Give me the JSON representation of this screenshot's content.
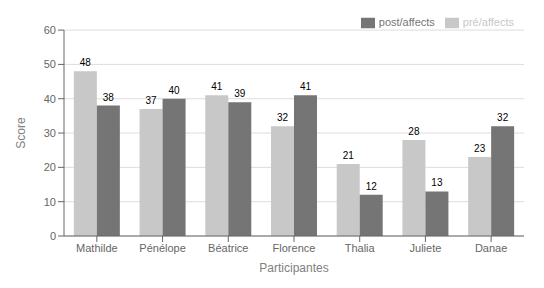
{
  "chart_data": {
    "type": "bar",
    "categories": [
      "Mathilde",
      "Pénélope",
      "Béatrice",
      "Florence",
      "Thalia",
      "Juliete",
      "Danae"
    ],
    "series": [
      {
        "name": "pré/affects",
        "color": "#c8c8c8",
        "values": [
          48,
          37,
          41,
          32,
          21,
          28,
          23
        ]
      },
      {
        "name": "post/affects",
        "color": "#757575",
        "values": [
          38,
          40,
          39,
          41,
          12,
          13,
          32
        ]
      }
    ],
    "xlabel": "Participantes",
    "ylabel": "Score",
    "ylim": [
      0,
      60
    ],
    "yticks": [
      0,
      10,
      20,
      30,
      40,
      50,
      60
    ],
    "grid": true,
    "legend": "upper right",
    "data_labels": true
  }
}
